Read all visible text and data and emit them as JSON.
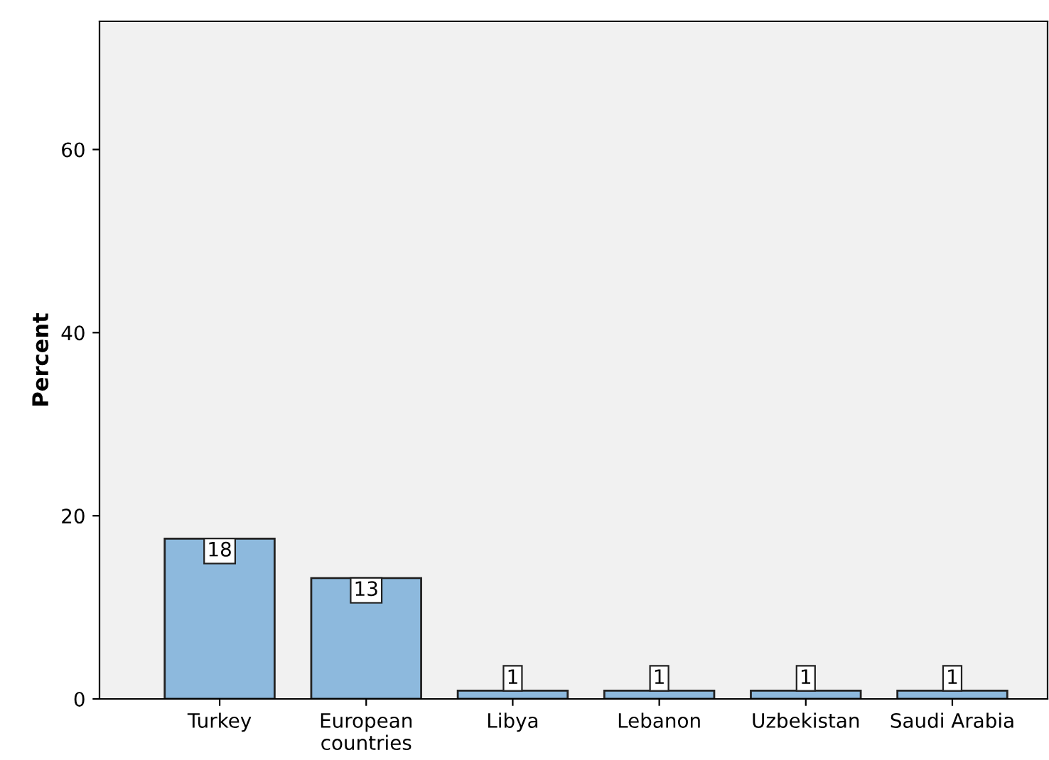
{
  "chart_data": {
    "type": "bar",
    "ylabel": "Percent",
    "categories": [
      "Turkey",
      "European\ncountries",
      "Libya",
      "Lebanon",
      "Uzbekistan",
      "Saudi Arabia"
    ],
    "values": [
      17.5,
      13.2,
      0.9,
      0.9,
      0.9,
      0.9
    ],
    "value_labels": [
      "18",
      "13",
      "1",
      "1",
      "1",
      "1"
    ],
    "color": "#8db9dd",
    "ylim": [
      0,
      74
    ],
    "yticks": [
      0,
      20,
      40,
      60
    ],
    "grid": false,
    "legend": false
  }
}
